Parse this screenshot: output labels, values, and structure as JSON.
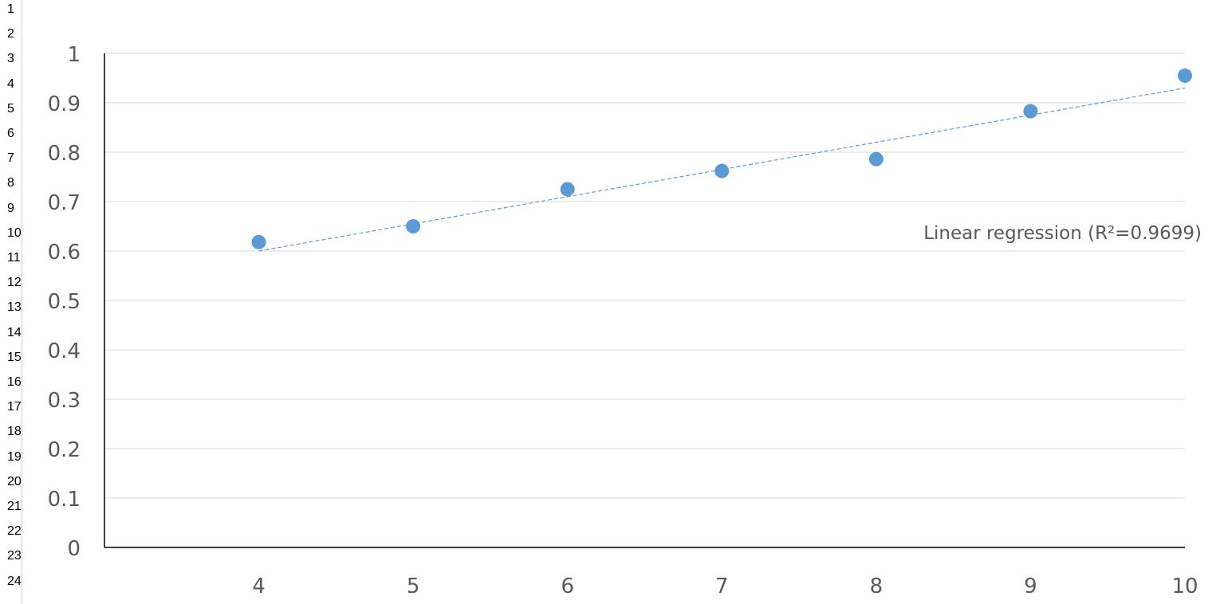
{
  "spreadsheet": {
    "row_numbers": [
      "1",
      "2",
      "3",
      "4",
      "5",
      "6",
      "7",
      "8",
      "9",
      "10",
      "11",
      "12",
      "13",
      "14",
      "15",
      "16",
      "17",
      "18",
      "19",
      "20",
      "21",
      "22",
      "23",
      "24"
    ]
  },
  "chart_data": {
    "type": "scatter",
    "title": "",
    "xlabel": "",
    "ylabel": "",
    "xlim": [
      3,
      10
    ],
    "ylim": [
      0,
      1
    ],
    "x_ticks": [
      "4",
      "5",
      "6",
      "7",
      "8",
      "9",
      "10"
    ],
    "y_ticks": [
      "0",
      "0.1",
      "0.2",
      "0.3",
      "0.4",
      "0.5",
      "0.6",
      "0.7",
      "0.8",
      "0.9",
      "1"
    ],
    "grid": true,
    "legend": "none",
    "series": [
      {
        "x": [
          4,
          5,
          6,
          7,
          8,
          9,
          10
        ],
        "y": [
          0.618,
          0.65,
          0.725,
          0.762,
          0.786,
          0.883,
          0.955
        ],
        "color": "#5B9BD5"
      }
    ],
    "trendline": {
      "type": "linear",
      "label": "Linear regression (R²=0.9699)",
      "x": [
        4,
        10
      ],
      "y": [
        0.6,
        0.93
      ],
      "color": "#5B9BD5",
      "style": "dashed"
    },
    "colors": {
      "gridline": "#d9d9d9",
      "axis": "#000000",
      "text": "#595959"
    }
  }
}
